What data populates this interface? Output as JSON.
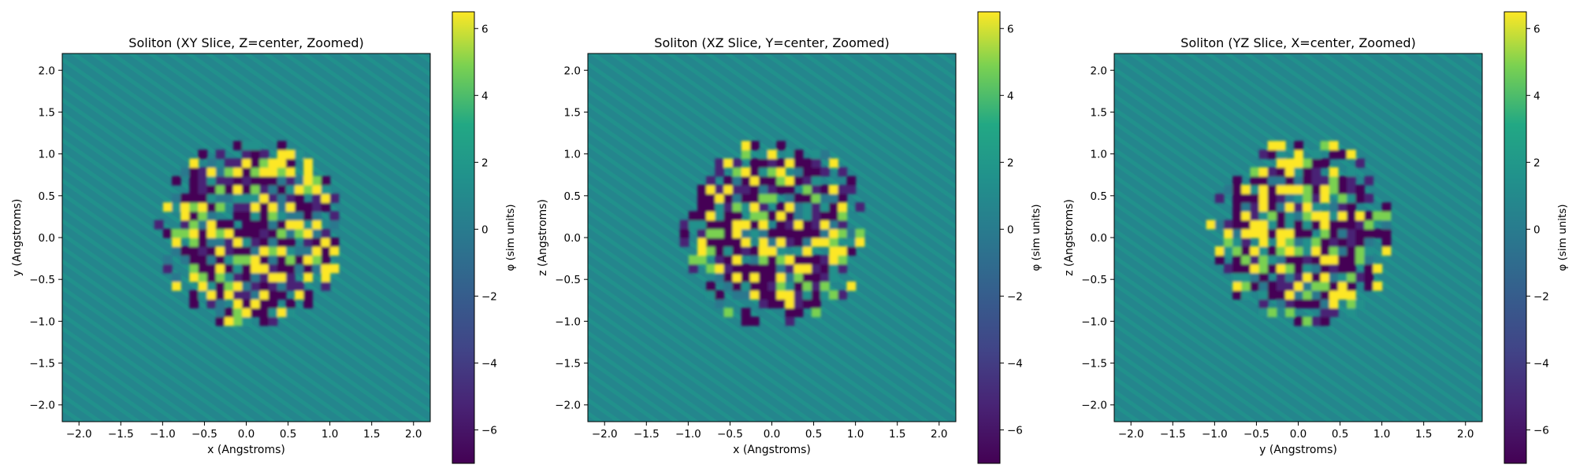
{
  "chart_data": [
    {
      "type": "heatmap",
      "title": "Soliton (XY Slice, Z=center, Zoomed)",
      "xlabel": "x (Angstroms)",
      "ylabel": "y (Angstroms)",
      "xlim": [
        -2.2,
        2.2
      ],
      "ylim": [
        -2.2,
        2.2
      ],
      "xticks": [
        "−2.0",
        "−1.5",
        "−1.0",
        "−0.5",
        "0.0",
        "0.5",
        "1.0",
        "1.5",
        "2.0"
      ],
      "yticks": [
        "2.0",
        "1.5",
        "1.0",
        "0.5",
        "0.0",
        "−0.5",
        "−1.0",
        "−1.5",
        "−2.0"
      ],
      "colorbar": {
        "label": "φ (sim units)",
        "range": [
          -7.0,
          6.5
        ],
        "ticks": [
          "6",
          "4",
          "2",
          "0",
          "−2",
          "−4",
          "−6"
        ]
      },
      "colormap": "viridis",
      "grid": false
    },
    {
      "type": "heatmap",
      "title": "Soliton (XZ Slice, Y=center, Zoomed)",
      "xlabel": "x (Angstroms)",
      "ylabel": "z (Angstroms)",
      "xlim": [
        -2.2,
        2.2
      ],
      "ylim": [
        -2.2,
        2.2
      ],
      "xticks": [
        "−2.0",
        "−1.5",
        "−1.0",
        "−0.5",
        "0.0",
        "0.5",
        "1.0",
        "1.5",
        "2.0"
      ],
      "yticks": [
        "2.0",
        "1.5",
        "1.0",
        "0.5",
        "0.0",
        "−0.5",
        "−1.0",
        "−1.5",
        "−2.0"
      ],
      "colorbar": {
        "label": "φ (sim units)",
        "range": [
          -7.0,
          6.5
        ],
        "ticks": [
          "6",
          "4",
          "2",
          "0",
          "−2",
          "−4",
          "−6"
        ]
      },
      "colormap": "viridis",
      "grid": false
    },
    {
      "type": "heatmap",
      "title": "Soliton (YZ Slice, X=center, Zoomed)",
      "xlabel": "y (Angstroms)",
      "ylabel": "z (Angstroms)",
      "xlim": [
        -2.2,
        2.2
      ],
      "ylim": [
        -2.2,
        2.2
      ],
      "xticks": [
        "−2.0",
        "−1.5",
        "−1.0",
        "−0.5",
        "0.0",
        "0.5",
        "1.0",
        "1.5",
        "2.0"
      ],
      "yticks": [
        "2.0",
        "1.5",
        "1.0",
        "0.5",
        "0.0",
        "−0.5",
        "−1.0",
        "−1.5",
        "−2.0"
      ],
      "colorbar": {
        "label": "φ (sim units)",
        "range": [
          -7.0,
          6.5
        ],
        "ticks": [
          "6",
          "4",
          "2",
          "0",
          "−2",
          "−4",
          "−6"
        ]
      },
      "colormap": "viridis",
      "grid": false
    }
  ]
}
